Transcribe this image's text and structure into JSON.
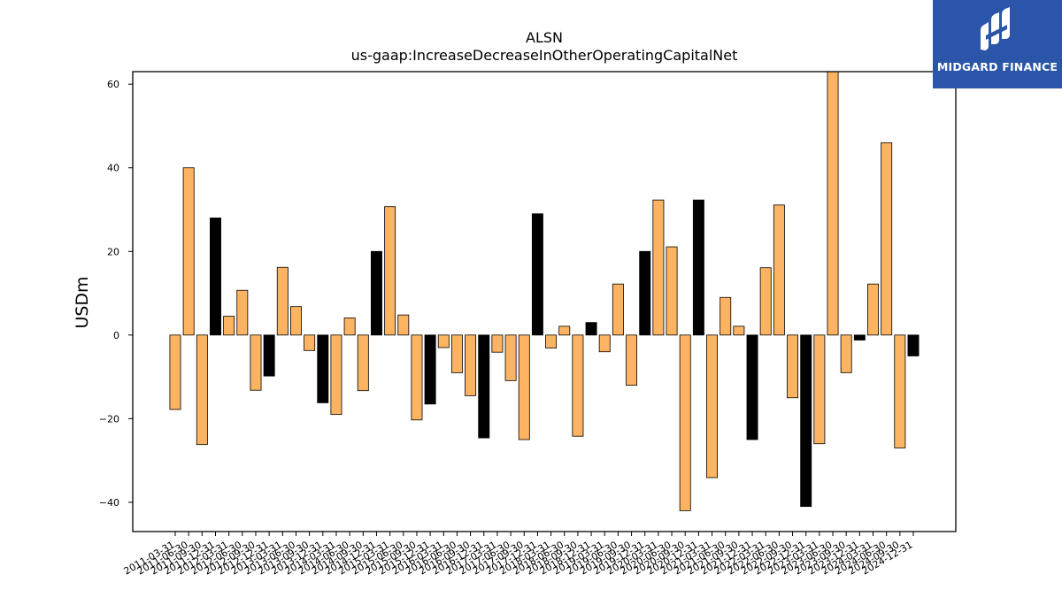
{
  "logo": {
    "text": "MIDGARD FINANCE",
    "icon": "midgard-finance-logo-icon",
    "bg_color": "#2a55a8"
  },
  "chart_data": {
    "type": "bar",
    "title": "ALSN",
    "subtitle": "us-gaap:IncreaseDecreaseInOtherOperatingCapitalNet",
    "ylabel": "USDm",
    "xlabel": "",
    "ylim": [
      -47,
      63
    ],
    "yticks": [
      -40,
      -20,
      0,
      20,
      40,
      60
    ],
    "grid": false,
    "legend": "none",
    "colors": {
      "default": "#fdb462",
      "q4": "#000000",
      "edge": "#000000"
    },
    "categories": [
      "2011-03-31",
      "2011-06-30",
      "2011-09-30",
      "2011-12-31",
      "2012-03-31",
      "2012-06-30",
      "2012-09-30",
      "2012-12-31",
      "2013-03-31",
      "2013-06-30",
      "2013-09-30",
      "2013-12-31",
      "2014-03-31",
      "2014-06-30",
      "2014-09-30",
      "2014-12-31",
      "2015-03-31",
      "2015-06-30",
      "2015-09-30",
      "2015-12-31",
      "2016-03-31",
      "2016-06-30",
      "2016-09-30",
      "2016-12-31",
      "2017-03-31",
      "2017-06-30",
      "2017-09-30",
      "2017-12-31",
      "2018-03-31",
      "2018-06-30",
      "2018-09-30",
      "2018-12-31",
      "2019-03-31",
      "2019-06-30",
      "2019-09-30",
      "2019-12-31",
      "2020-03-31",
      "2020-06-30",
      "2020-09-30",
      "2020-12-31",
      "2021-03-31",
      "2021-06-30",
      "2021-09-30",
      "2021-12-31",
      "2022-03-31",
      "2022-06-30",
      "2022-09-30",
      "2022-12-31",
      "2023-03-31",
      "2023-06-30",
      "2023-09-30",
      "2023-12-31",
      "2024-03-31",
      "2024-06-30",
      "2024-09-30",
      "2024-12-31"
    ],
    "values": [
      -17.8,
      40,
      -26.2,
      28,
      4.5,
      10.7,
      -13.2,
      -9.8,
      16.2,
      6.8,
      -3.7,
      -16.2,
      -19,
      4.1,
      -13.3,
      20,
      30.7,
      4.8,
      -20.3,
      -16.5,
      -3,
      -9,
      -14.5,
      -24.6,
      -4.1,
      -10.9,
      -25,
      29,
      -3.1,
      2.1,
      -24.2,
      3,
      -4,
      12.2,
      -12,
      20,
      32.3,
      21.1,
      -42,
      32.3,
      -34.1,
      9,
      2.1,
      -25,
      16.1,
      31.1,
      -15,
      -41,
      -26,
      63,
      -9,
      -1.2,
      12.2,
      46,
      -27,
      -5
    ]
  }
}
